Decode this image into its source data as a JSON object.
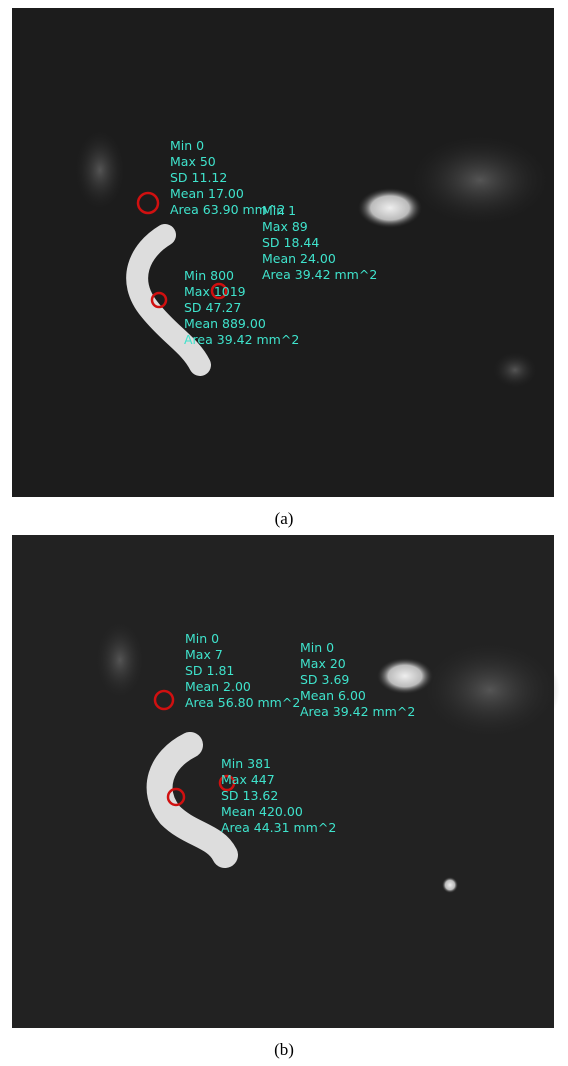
{
  "panels": [
    {
      "label": "(a)",
      "annotations": [
        {
          "lines": [
            "Min  0",
            "Max  50",
            "SD   11.12",
            "Mean 17.00",
            "Area 63.90 mm^2"
          ]
        },
        {
          "lines": [
            "Min  1",
            "Max  89",
            "SD   18.44",
            "Mean 24.00",
            "Area 39.42 mm^2"
          ]
        },
        {
          "lines": [
            "Min  800",
            "Max  1019",
            "SD   47.27",
            "Mean 889.00",
            "Area 39.42 mm^2"
          ]
        }
      ]
    },
    {
      "label": "(b)",
      "annotations": [
        {
          "lines": [
            "Min  0",
            "Max  7",
            "SD   1.81",
            "Mean 2.00",
            "Area 56.80 mm^2"
          ]
        },
        {
          "lines": [
            "Min  0",
            "Max  20",
            "SD   3.69",
            "Mean 6.00",
            "Area 39.42 mm^2"
          ]
        },
        {
          "lines": [
            "Min  381",
            "Max  447",
            "SD   13.62",
            "Mean 420.00",
            "Area 44.31 mm^2"
          ]
        }
      ]
    }
  ]
}
